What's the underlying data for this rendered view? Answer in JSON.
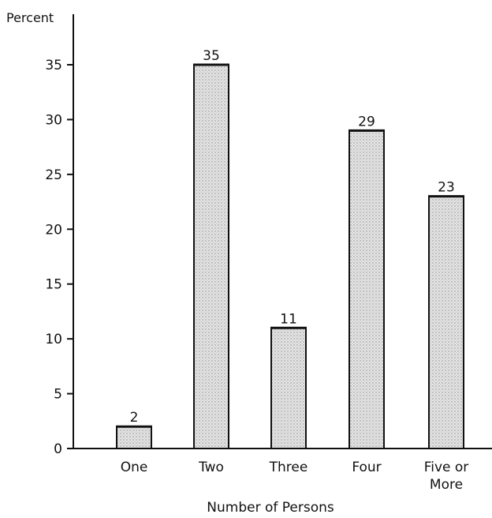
{
  "chart_data": {
    "type": "bar",
    "title": "",
    "ylabel": "Percent",
    "xlabel": "Number of Persons",
    "categories": [
      "One",
      "Two",
      "Three",
      "Four",
      "Five or More"
    ],
    "category_lines": [
      [
        "One"
      ],
      [
        "Two"
      ],
      [
        "Three"
      ],
      [
        "Four"
      ],
      [
        "Five or",
        "More"
      ]
    ],
    "values": [
      2,
      35,
      11,
      29,
      23
    ],
    "data_labels": [
      "2",
      "35",
      "11",
      "29",
      "23"
    ],
    "ylim": [
      0,
      35
    ],
    "yticks": [
      0,
      5,
      10,
      15,
      20,
      25,
      30,
      35
    ],
    "grid": false,
    "legend": "none",
    "bar_fill": "#d6d6d6",
    "bar_stroke": "#111111"
  }
}
